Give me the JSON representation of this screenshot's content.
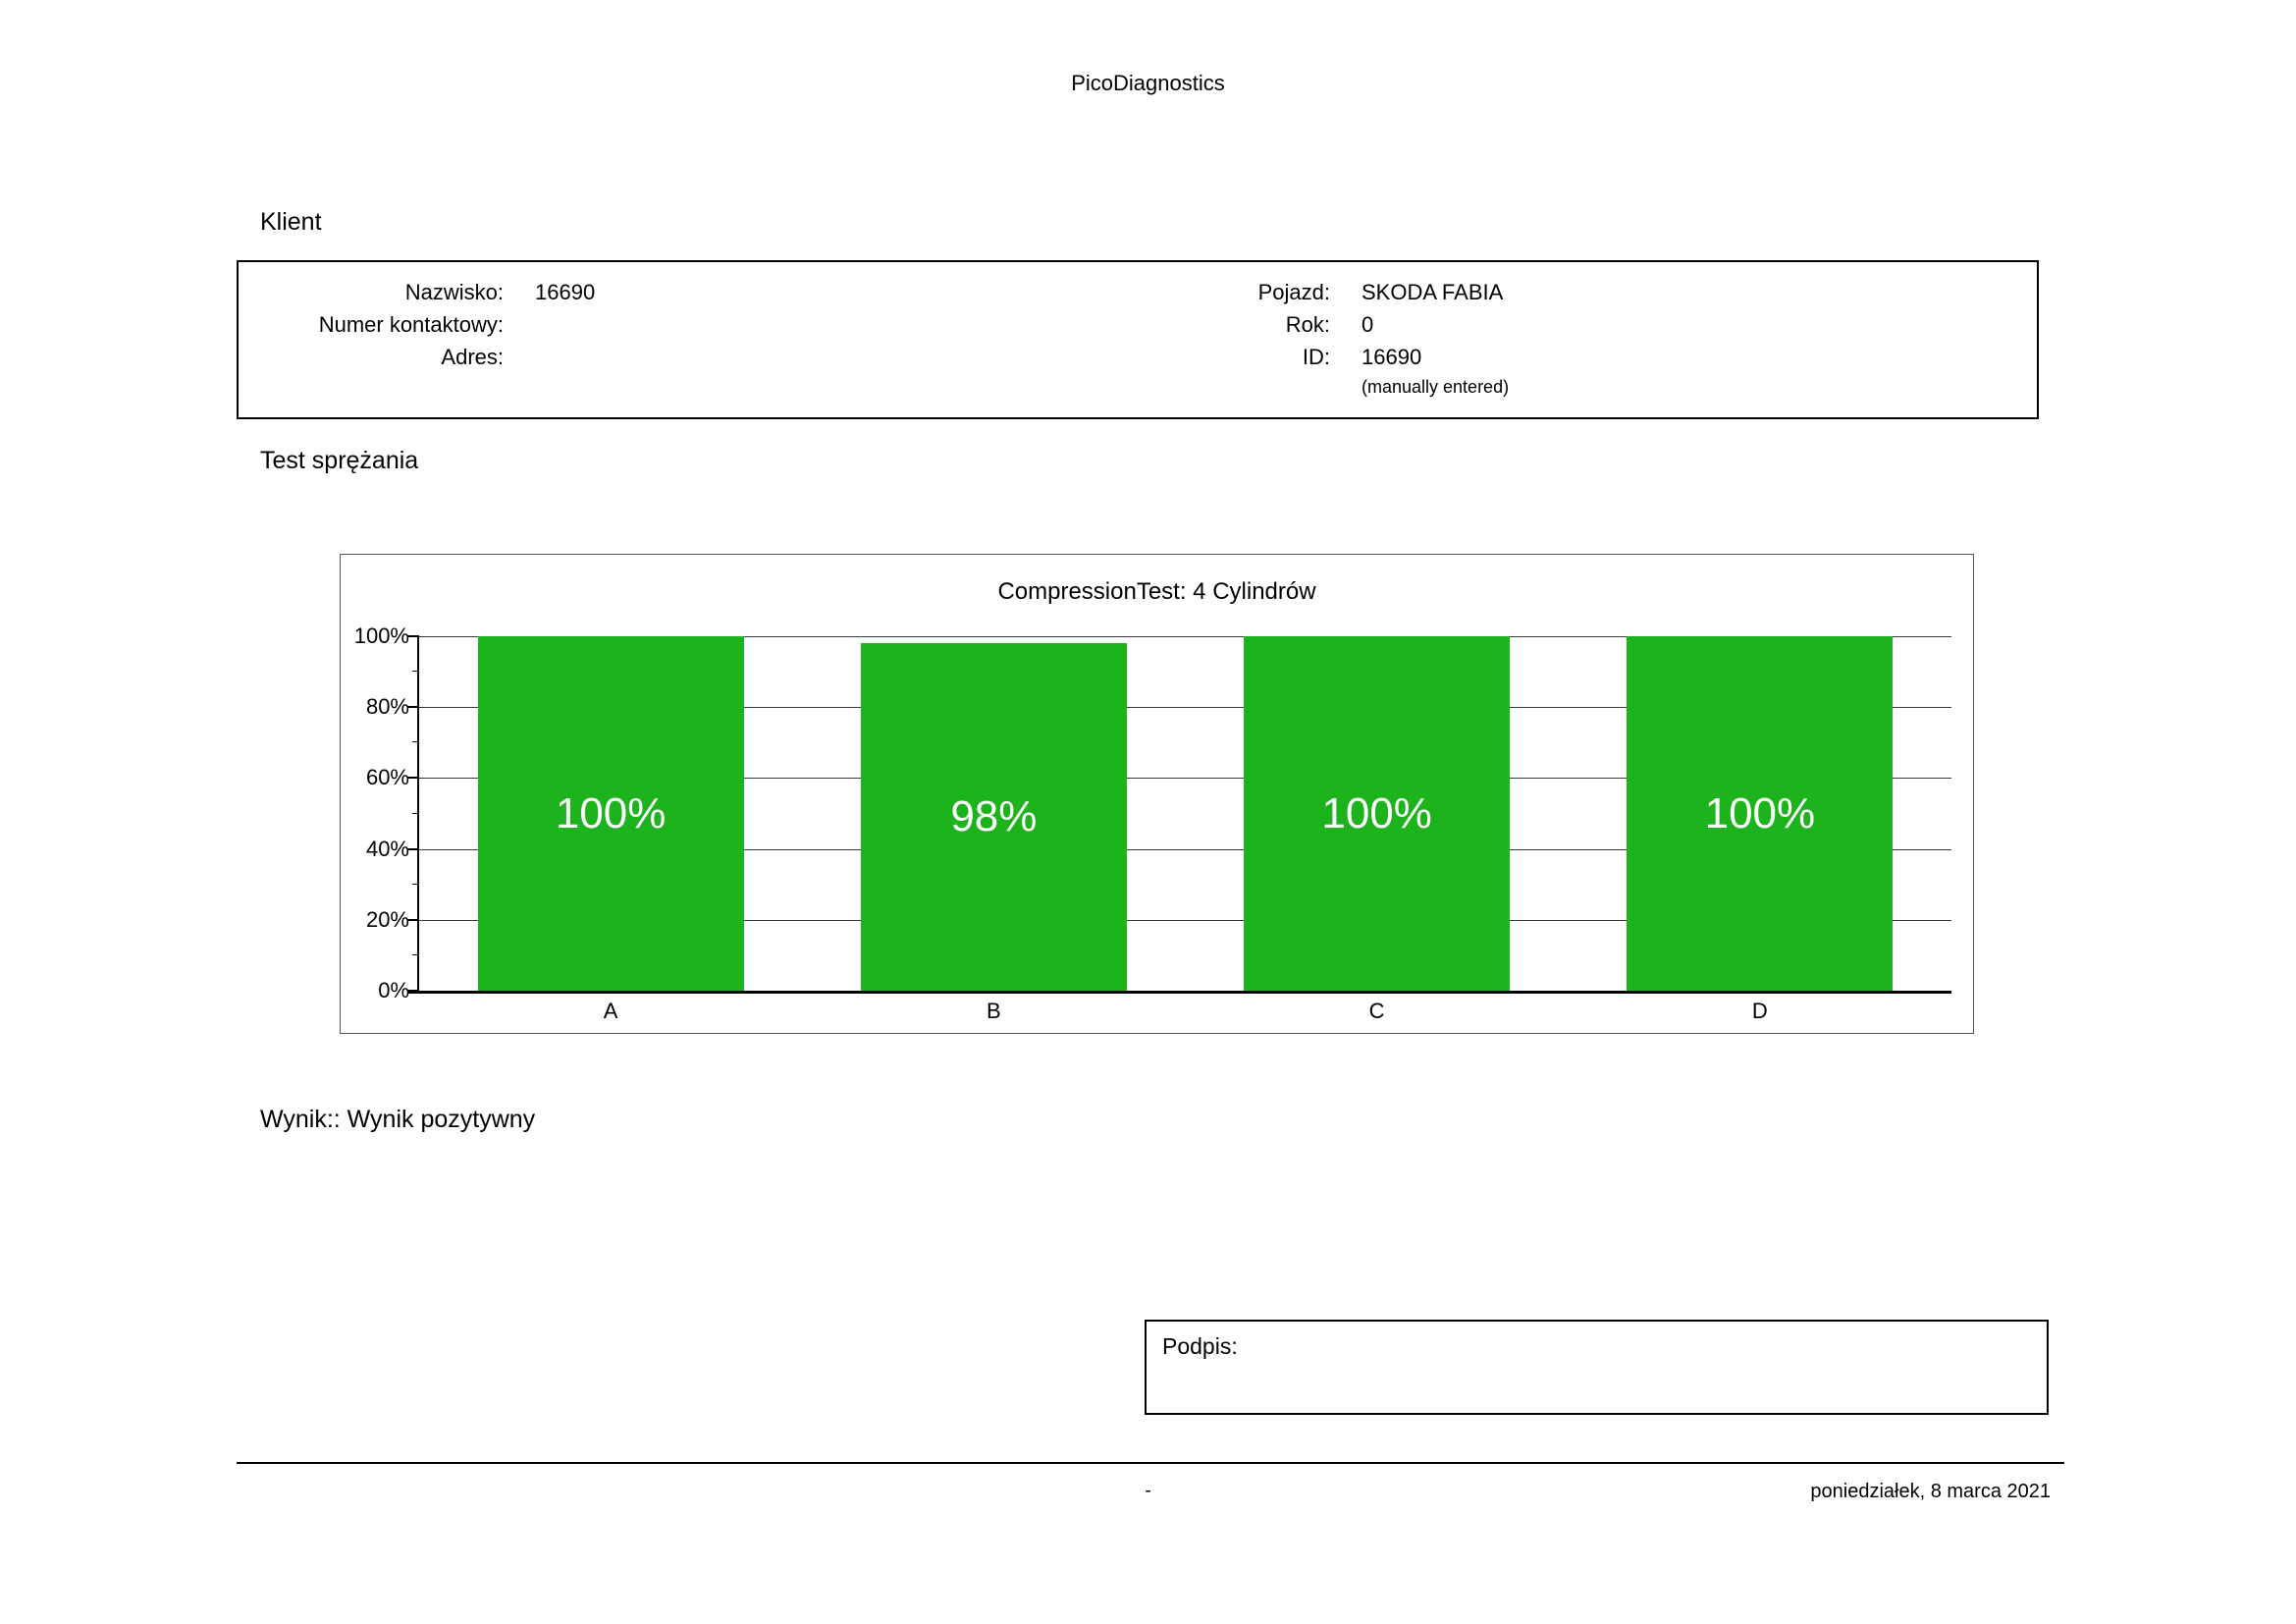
{
  "report": {
    "app_title": "PicoDiagnostics",
    "client_section": {
      "heading": "Klient",
      "fields_left": [
        {
          "label": "Nazwisko:",
          "value": "16690"
        },
        {
          "label": "Numer kontaktowy:",
          "value": ""
        },
        {
          "label": "Adres:",
          "value": ""
        }
      ],
      "fields_right": [
        {
          "label": "Pojazd:",
          "value": "SKODA FABIA"
        },
        {
          "label": "Rok:",
          "value": "0"
        },
        {
          "label": "ID:",
          "value": "16690"
        },
        {
          "label": "",
          "value": "(manually entered)"
        }
      ]
    },
    "test_heading": "Test sprężania",
    "result_text": "Wynik:: Wynik pozytywny",
    "signature_label": "Podpis:",
    "footer": {
      "center": "-",
      "date": "poniedziałek, 8 marca 2021"
    }
  },
  "chart_data": {
    "type": "bar",
    "title": "CompressionTest: 4 Cylindrów",
    "categories": [
      "A",
      "B",
      "C",
      "D"
    ],
    "values": [
      100,
      98,
      100,
      100
    ],
    "bar_labels": [
      "100%",
      "98%",
      "100%",
      "100%"
    ],
    "y_ticks": [
      "100%",
      "80%",
      "60%",
      "40%",
      "20%",
      "0%"
    ],
    "ylim": [
      0,
      100
    ],
    "ylabel": "",
    "xlabel": "",
    "bar_color": "#1db31d",
    "grid": true,
    "legend_position": "none"
  }
}
